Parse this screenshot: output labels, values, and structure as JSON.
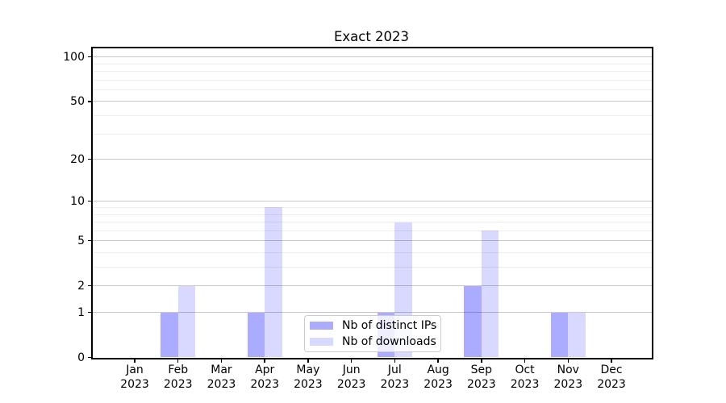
{
  "chart_data": {
    "type": "bar",
    "title": "Exact 2023",
    "categories": [
      "Jan 2023",
      "Feb 2023",
      "Mar 2023",
      "Apr 2023",
      "May 2023",
      "Jun 2023",
      "Jul 2023",
      "Aug 2023",
      "Sep 2023",
      "Oct 2023",
      "Nov 2023",
      "Dec 2023"
    ],
    "series": [
      {
        "name": "Nb of distinct IPs",
        "color": "rgba(0,0,255,0.33)",
        "values": [
          0,
          1,
          0,
          1,
          0,
          0,
          1,
          0,
          2,
          0,
          1,
          0
        ]
      },
      {
        "name": "Nb of downloads",
        "color": "rgba(0,0,255,0.15)",
        "values": [
          0,
          2,
          0,
          9,
          0,
          0,
          7,
          0,
          6,
          0,
          1,
          0
        ]
      }
    ],
    "xlabel": "",
    "ylabel": "",
    "y_scale": "log10(1+x)",
    "ylim": [
      0,
      115
    ],
    "y_major_ticks": [
      0,
      1,
      2,
      5,
      10,
      20,
      50,
      100
    ],
    "y_minor_gridlines": [
      3,
      4,
      6,
      7,
      8,
      9,
      30,
      40,
      60,
      70,
      80,
      90
    ],
    "grid": "horizontal, major and minor",
    "legend_position": "lower center",
    "colors": {
      "major_grid": "#c8c8c8",
      "minor_grid": "#eeeeee",
      "spine": "#000000",
      "text": "#000000"
    }
  }
}
